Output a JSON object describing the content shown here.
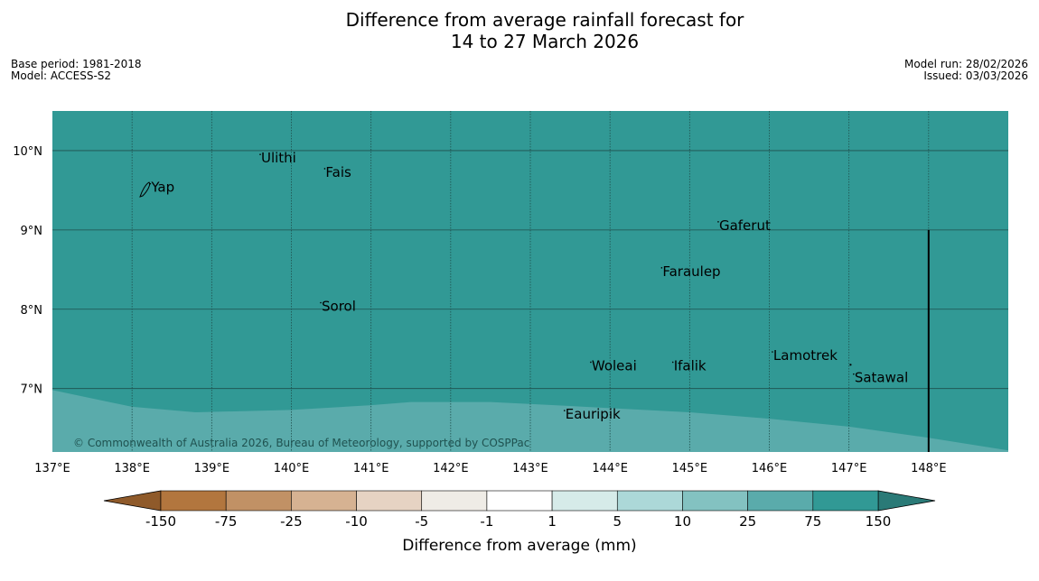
{
  "title": {
    "line1": "Difference from average rainfall forecast for",
    "line2": "14 to 27 March 2026"
  },
  "meta_left": {
    "base_period": "Base period: 1981-2018",
    "model": "Model: ACCESS-S2"
  },
  "meta_right": {
    "model_run": "Model run: 28/02/2026",
    "issued": "Issued: 03/03/2026"
  },
  "map": {
    "lon_range": [
      137,
      149
    ],
    "lat_range": [
      6.2,
      10.5
    ],
    "lon_ticks": [
      {
        "v": 137,
        "label": "137°E"
      },
      {
        "v": 138,
        "label": "138°E"
      },
      {
        "v": 139,
        "label": "139°E"
      },
      {
        "v": 140,
        "label": "140°E"
      },
      {
        "v": 141,
        "label": "141°E"
      },
      {
        "v": 142,
        "label": "142°E"
      },
      {
        "v": 143,
        "label": "143°E"
      },
      {
        "v": 144,
        "label": "144°E"
      },
      {
        "v": 145,
        "label": "145°E"
      },
      {
        "v": 146,
        "label": "146°E"
      },
      {
        "v": 147,
        "label": "147°E"
      },
      {
        "v": 148,
        "label": "148°E"
      }
    ],
    "lat_ticks": [
      {
        "v": 10,
        "label": "10°N"
      },
      {
        "v": 9,
        "label": "9°N"
      },
      {
        "v": 8,
        "label": "8°N"
      },
      {
        "v": 7,
        "label": "7°N"
      }
    ],
    "fill_color": "#319995",
    "lower_band_color": "#5aabab",
    "lower_band_boundary": [
      {
        "lon": 137.0,
        "lat": 6.98
      },
      {
        "lon": 138.0,
        "lat": 6.77
      },
      {
        "lon": 138.8,
        "lat": 6.7
      },
      {
        "lon": 140.0,
        "lat": 6.73
      },
      {
        "lon": 141.0,
        "lat": 6.79
      },
      {
        "lon": 141.5,
        "lat": 6.83
      },
      {
        "lon": 142.5,
        "lat": 6.83
      },
      {
        "lon": 143.5,
        "lat": 6.78
      },
      {
        "lon": 145.0,
        "lat": 6.7
      },
      {
        "lon": 146.0,
        "lat": 6.62
      },
      {
        "lon": 147.0,
        "lat": 6.52
      },
      {
        "lon": 148.0,
        "lat": 6.38
      },
      {
        "lon": 149.0,
        "lat": 6.22
      }
    ],
    "boundary_line": {
      "lon": 148.0,
      "lat_top": 9.0,
      "lat_bottom": 6.2
    },
    "places": [
      {
        "name": "Ulithi",
        "lon": 139.62,
        "lat": 9.85
      },
      {
        "name": "Fais",
        "lon": 140.43,
        "lat": 9.67
      },
      {
        "name": "Yap",
        "lon": 138.24,
        "lat": 9.48
      },
      {
        "name": "Gaferut",
        "lon": 145.37,
        "lat": 9.0
      },
      {
        "name": "Faraulep",
        "lon": 144.66,
        "lat": 8.42
      },
      {
        "name": "Sorol",
        "lon": 140.38,
        "lat": 7.98
      },
      {
        "name": "Lamotrek",
        "lon": 146.05,
        "lat": 7.36
      },
      {
        "name": "Woleai",
        "lon": 143.77,
        "lat": 7.23
      },
      {
        "name": "Ifalik",
        "lon": 144.8,
        "lat": 7.23
      },
      {
        "name": "Satawal",
        "lon": 147.07,
        "lat": 7.08
      },
      {
        "name": "Eauripik",
        "lon": 143.44,
        "lat": 6.62
      }
    ],
    "copyright": "© Commonwealth of Australia 2026, Bureau of Meteorology, supported by COSPPac"
  },
  "colorbar": {
    "label": "Difference from average (mm)",
    "ticks": [
      "-150",
      "-75",
      "-25",
      "-10",
      "-5",
      "-1",
      "1",
      "5",
      "10",
      "25",
      "75",
      "150"
    ],
    "low_extend_color": "#8f5a2a",
    "high_extend_color": "#2a7a77",
    "colors": [
      "#b2763e",
      "#c19165",
      "#d6b292",
      "#e6d3c3",
      "#efece6",
      "#ffffff",
      "#d6ebe9",
      "#acd8d8",
      "#83c2c1",
      "#5aabab",
      "#319995"
    ]
  }
}
